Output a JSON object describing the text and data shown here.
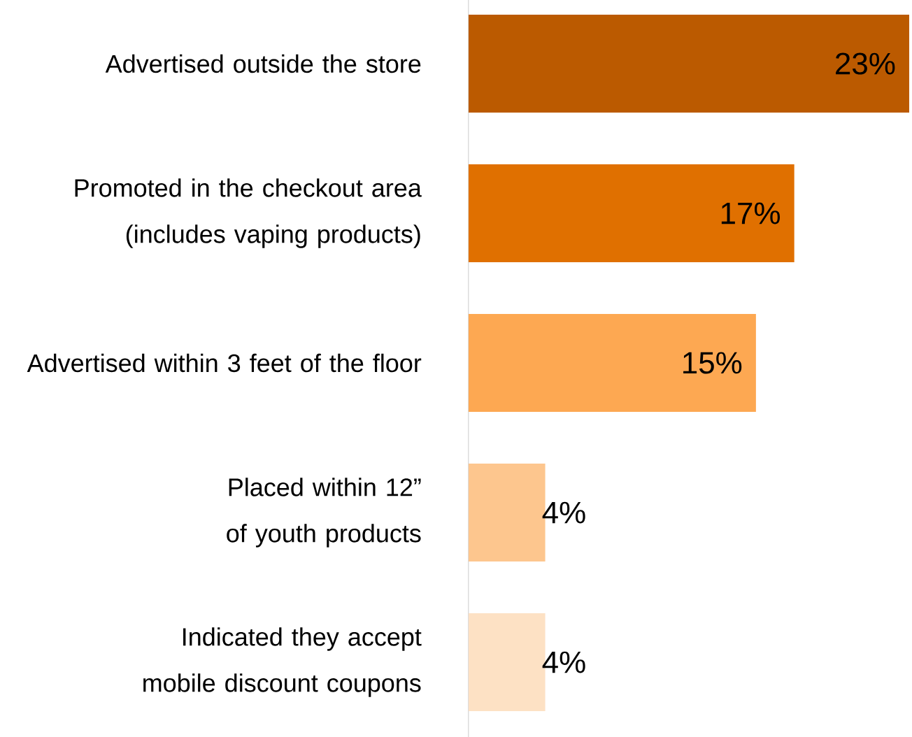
{
  "chart_data": {
    "type": "bar",
    "orientation": "horizontal",
    "categories": [
      "Advertised outside the store",
      "Promoted in the checkout area (includes vaping products)",
      "Advertised within 3 feet of the floor",
      "Placed within 12” of youth products",
      "Indicated they accept mobile discount coupons"
    ],
    "values": [
      23,
      17,
      15,
      4,
      4
    ],
    "colors": [
      "#bb5a00",
      "#e07000",
      "#fda852",
      "#fdc68e",
      "#fde1c4"
    ],
    "value_labels": [
      "23%",
      "17%",
      "15%",
      "4%",
      "4%"
    ]
  }
}
